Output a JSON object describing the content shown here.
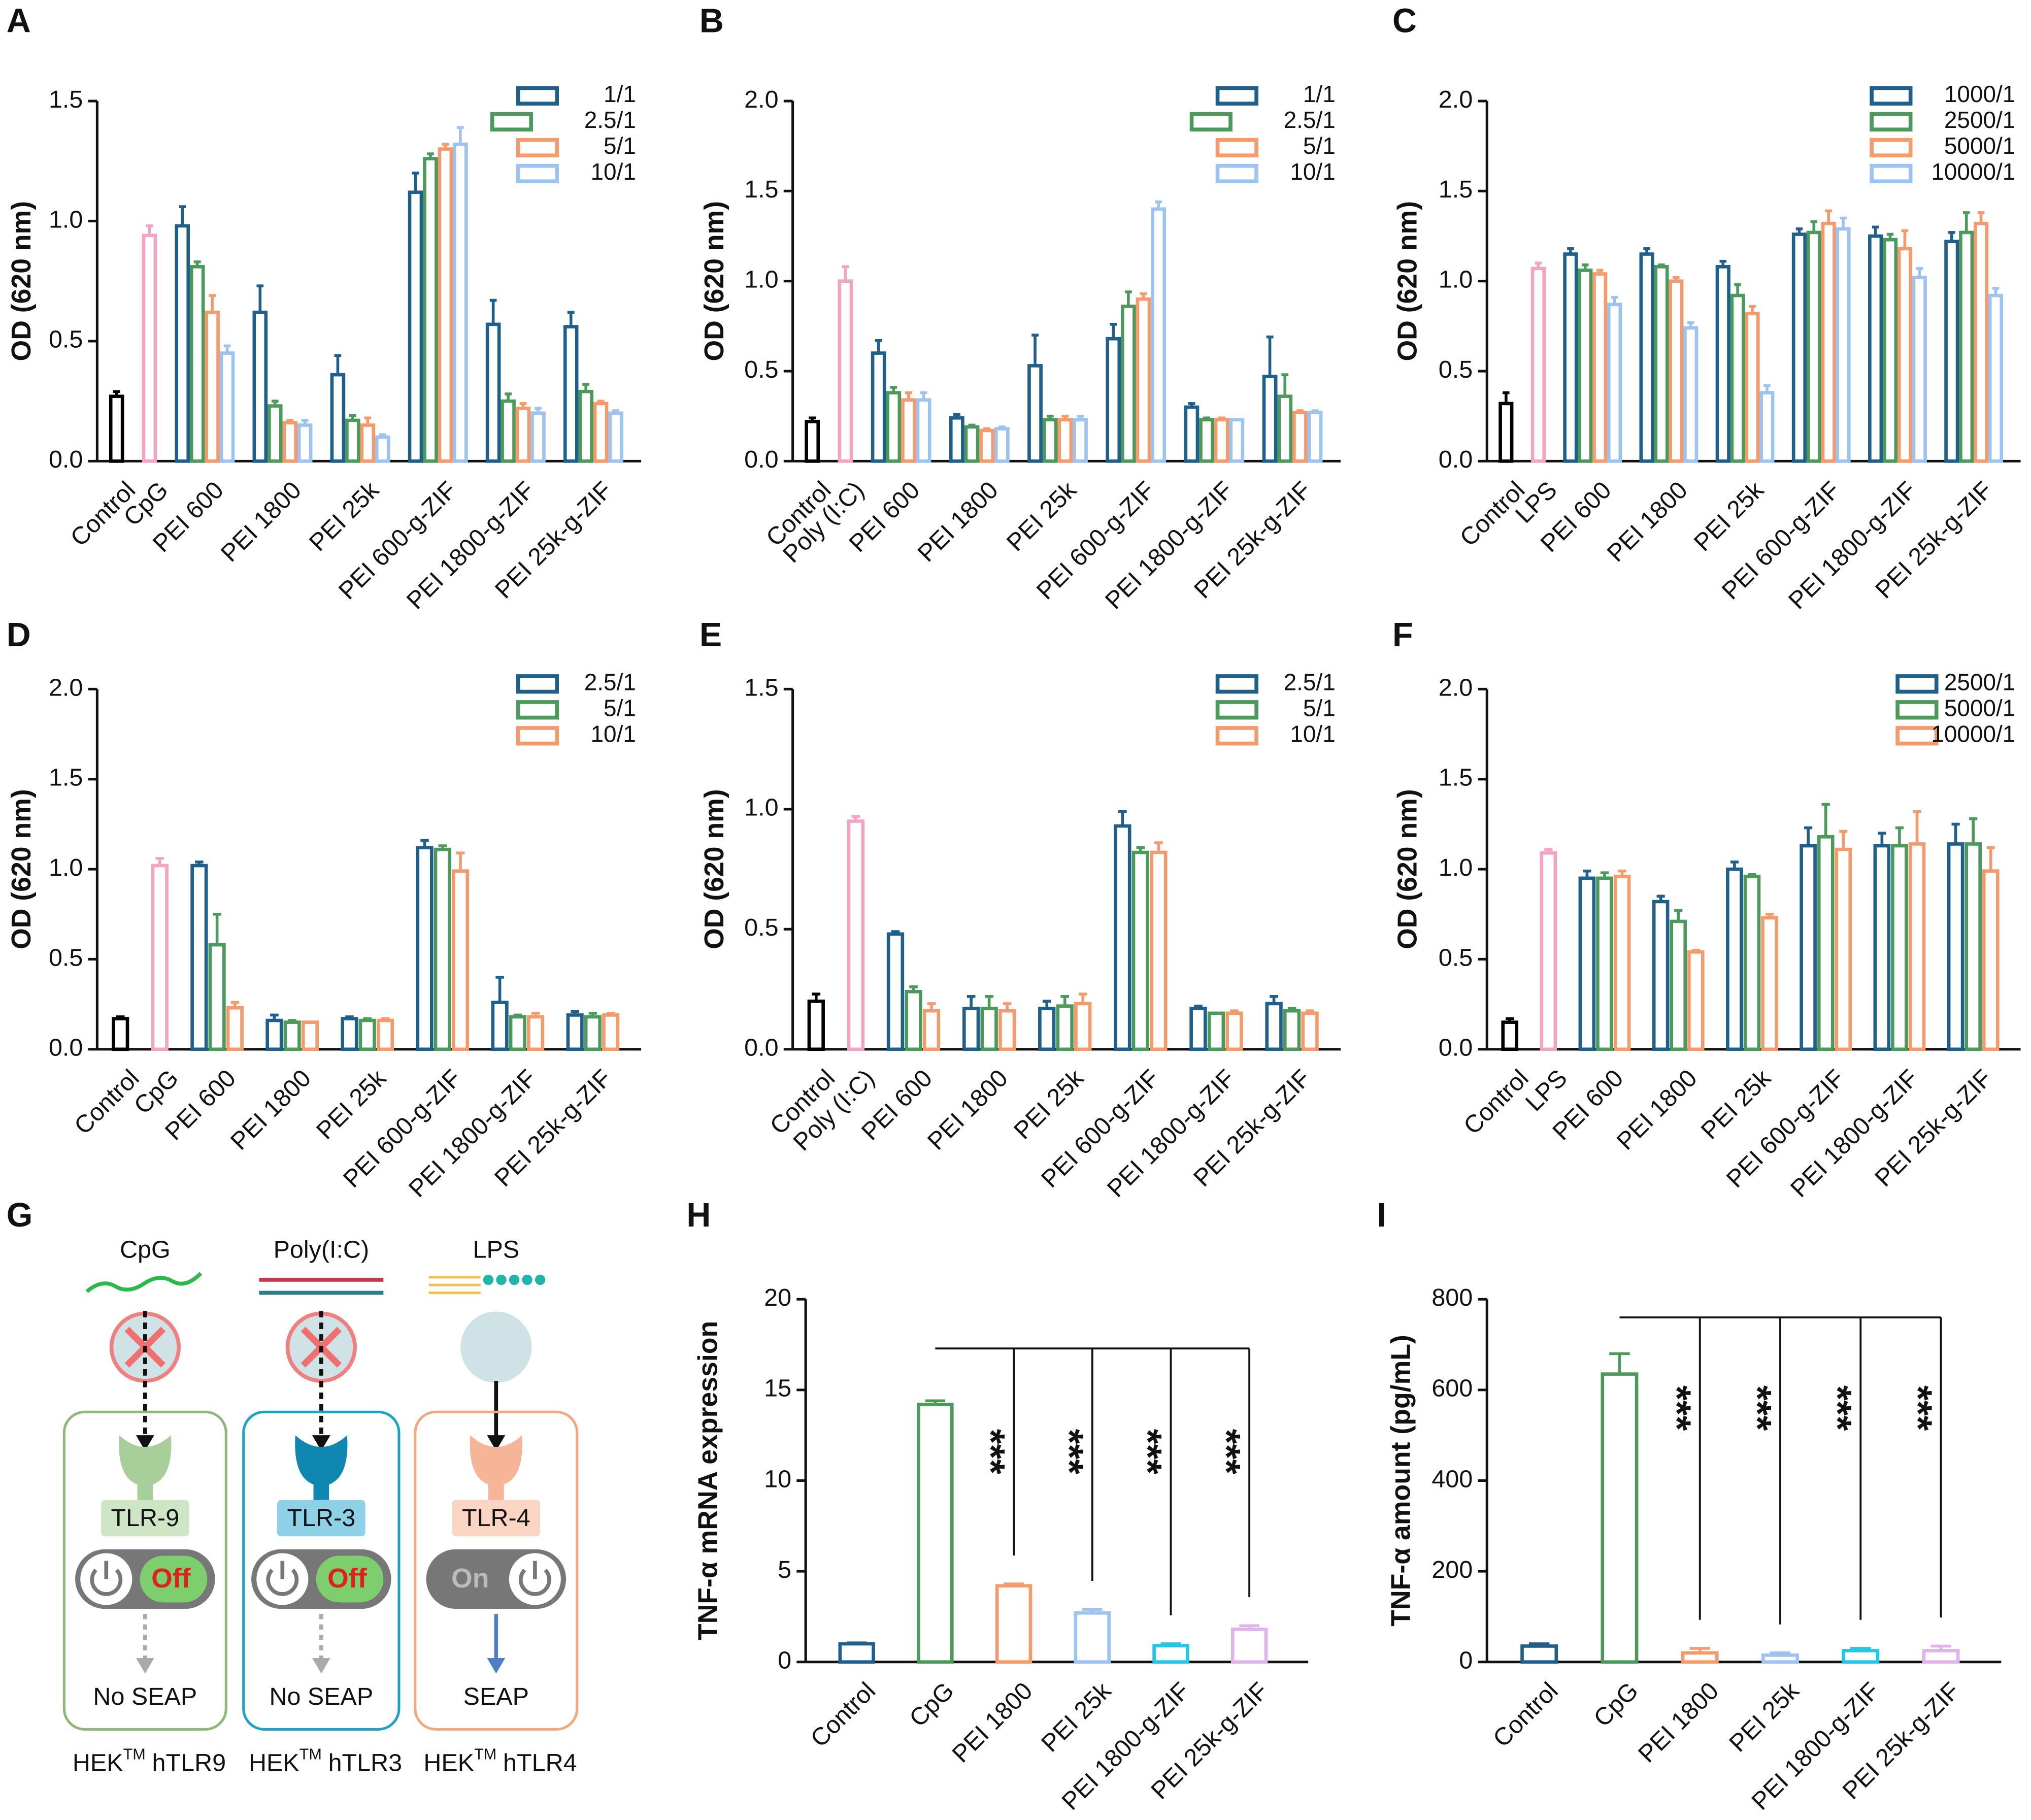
{
  "chart_data": [
    {
      "type": "bar",
      "panel": "A",
      "ylabel": "OD (620 nm)",
      "categories": [
        "Control",
        "CpG",
        "PEI 600",
        "PEI 1800",
        "PEI 25k",
        "PEI 600-g-ZIF",
        "PEI 1800-g-ZIF",
        "PEI 25k-g-ZIF"
      ],
      "values": [
        0.27,
        0.94,
        null,
        null,
        null,
        null,
        null,
        null
      ],
      "errors": [
        0.02,
        0.04,
        null,
        null,
        null,
        null,
        null,
        null
      ],
      "colors": [
        "#000000",
        "#f4a3c0",
        null,
        null,
        null,
        null,
        null,
        null
      ],
      "series": [
        {
          "name": "1/1",
          "color": "#1f5f8b",
          "values": [
            null,
            null,
            0.98,
            0.62,
            0.36,
            1.12,
            0.57,
            0.56
          ],
          "errors": [
            null,
            null,
            0.08,
            0.11,
            0.08,
            0.08,
            0.1,
            0.06
          ]
        },
        {
          "name": "2.5/1",
          "color": "#4c9a5b",
          "values": [
            null,
            null,
            0.81,
            0.23,
            0.17,
            1.26,
            0.25,
            0.29
          ],
          "errors": [
            null,
            null,
            0.02,
            0.02,
            0.02,
            0.02,
            0.03,
            0.03
          ]
        },
        {
          "name": "5/1",
          "color": "#f59a6b",
          "values": [
            null,
            null,
            0.62,
            0.16,
            0.15,
            1.3,
            0.22,
            0.24
          ],
          "errors": [
            null,
            null,
            0.07,
            0.01,
            0.03,
            0.02,
            0.02,
            0.01
          ]
        },
        {
          "name": "10/1",
          "color": "#9dc3f0",
          "values": [
            null,
            null,
            0.45,
            0.15,
            0.1,
            1.32,
            0.2,
            0.2
          ],
          "errors": [
            null,
            null,
            0.03,
            0.02,
            0.01,
            0.07,
            0.02,
            0.01
          ]
        }
      ],
      "ylim": [
        0,
        1.5
      ],
      "yticks": [
        {
          "value": 0,
          "label": "0.0"
        },
        0.5,
        {
          "value": 1,
          "label": "1.0"
        },
        1.5
      ]
    },
    {
      "type": "bar",
      "panel": "B",
      "ylabel": "OD (620 nm)",
      "categories": [
        "Control",
        "Poly (I:C)",
        "PEI 600",
        "PEI 1800",
        "PEI 25k",
        "PEI 600-g-ZIF",
        "PEI 1800-g-ZIF",
        "PEI 25k-g-ZIF"
      ],
      "values": [
        0.22,
        1.0,
        null,
        null,
        null,
        null,
        null,
        null
      ],
      "errors": [
        0.02,
        0.08,
        null,
        null,
        null,
        null,
        null,
        null
      ],
      "colors": [
        "#000000",
        "#f4a3c0",
        null,
        null,
        null,
        null,
        null,
        null
      ],
      "series": [
        {
          "name": "1/1",
          "color": "#1f5f8b",
          "values": [
            null,
            null,
            0.6,
            0.24,
            0.53,
            0.68,
            0.3,
            0.47
          ],
          "errors": [
            null,
            null,
            0.07,
            0.02,
            0.17,
            0.08,
            0.02,
            0.22
          ]
        },
        {
          "name": "2.5/1",
          "color": "#4c9a5b",
          "values": [
            null,
            null,
            0.38,
            0.19,
            0.23,
            0.86,
            0.23,
            0.36
          ],
          "errors": [
            null,
            null,
            0.03,
            0.01,
            0.02,
            0.08,
            0.01,
            0.12
          ]
        },
        {
          "name": "5/1",
          "color": "#f59a6b",
          "values": [
            null,
            null,
            0.34,
            0.17,
            0.23,
            0.9,
            0.23,
            0.27
          ],
          "errors": [
            null,
            null,
            0.04,
            0.01,
            0.02,
            0.03,
            0.01,
            0.01
          ]
        },
        {
          "name": "10/1",
          "color": "#9dc3f0",
          "values": [
            null,
            null,
            0.34,
            0.18,
            0.23,
            1.4,
            0.23,
            0.27
          ],
          "errors": [
            null,
            null,
            0.04,
            0.01,
            0.02,
            0.04,
            0,
            0.01
          ]
        }
      ],
      "ylim": [
        0,
        2
      ],
      "yticks": [
        {
          "value": 0,
          "label": "0.0"
        },
        0.5,
        {
          "value": 1,
          "label": "1.0"
        },
        1.5,
        {
          "value": 2,
          "label": "2.0"
        }
      ]
    },
    {
      "type": "bar",
      "panel": "C",
      "ylabel": "OD (620 nm)",
      "categories": [
        "Control",
        "LPS",
        "PEI 600",
        "PEI 1800",
        "PEI 25k",
        "PEI 600-g-ZIF",
        "PEI 1800-g-ZIF",
        "PEI 25k-g-ZIF"
      ],
      "values": [
        0.32,
        1.07,
        null,
        null,
        null,
        null,
        null,
        null
      ],
      "errors": [
        0.06,
        0.03,
        null,
        null,
        null,
        null,
        null,
        null
      ],
      "colors": [
        "#000000",
        "#f4a3c0",
        null,
        null,
        null,
        null,
        null,
        null
      ],
      "series": [
        {
          "name": "1000/1",
          "color": "#1f5f8b",
          "values": [
            null,
            null,
            1.15,
            1.15,
            1.08,
            1.26,
            1.25,
            1.22
          ],
          "errors": [
            null,
            null,
            0.03,
            0.03,
            0.03,
            0.03,
            0.05,
            0.05
          ]
        },
        {
          "name": "2500/1",
          "color": "#4c9a5b",
          "values": [
            null,
            null,
            1.06,
            1.08,
            0.92,
            1.27,
            1.23,
            1.27
          ],
          "errors": [
            null,
            null,
            0.03,
            0.01,
            0.06,
            0.06,
            0.03,
            0.11
          ]
        },
        {
          "name": "5000/1",
          "color": "#f59a6b",
          "values": [
            null,
            null,
            1.04,
            1.0,
            0.82,
            1.32,
            1.18,
            1.32
          ],
          "errors": [
            null,
            null,
            0.02,
            0.02,
            0.04,
            0.07,
            0.1,
            0.06
          ]
        },
        {
          "name": "10000/1",
          "color": "#9dc3f0",
          "values": [
            null,
            null,
            0.87,
            0.74,
            0.38,
            1.29,
            1.02,
            0.92
          ],
          "errors": [
            null,
            null,
            0.04,
            0.03,
            0.04,
            0.06,
            0.05,
            0.04
          ]
        }
      ],
      "ylim": [
        0,
        2
      ],
      "yticks": [
        {
          "value": 0,
          "label": "0.0"
        },
        0.5,
        {
          "value": 1,
          "label": "1.0"
        },
        1.5,
        {
          "value": 2,
          "label": "2.0"
        }
      ]
    },
    {
      "type": "bar",
      "panel": "D",
      "ylabel": "OD (620 nm)",
      "categories": [
        "Control",
        "CpG",
        "PEI 600",
        "PEI 1800",
        "PEI 25k",
        "PEI 600-g-ZIF",
        "PEI 1800-g-ZIF",
        "PEI 25k-g-ZIF"
      ],
      "values": [
        0.17,
        1.02,
        null,
        null,
        null,
        null,
        null,
        null
      ],
      "errors": [
        0.01,
        0.04,
        null,
        null,
        null,
        null,
        null,
        null
      ],
      "colors": [
        "#000000",
        "#f4a3c0",
        null,
        null,
        null,
        null,
        null,
        null
      ],
      "series": [
        {
          "name": "2.5/1",
          "color": "#1f5f8b",
          "values": [
            null,
            null,
            1.02,
            0.16,
            0.17,
            1.12,
            0.26,
            0.19
          ],
          "errors": [
            null,
            null,
            0.02,
            0.03,
            0.01,
            0.04,
            0.14,
            0.02
          ]
        },
        {
          "name": "5/1",
          "color": "#4c9a5b",
          "values": [
            null,
            null,
            0.58,
            0.15,
            0.16,
            1.11,
            0.18,
            0.18
          ],
          "errors": [
            null,
            null,
            0.17,
            0.01,
            0.01,
            0.02,
            0.01,
            0.02
          ]
        },
        {
          "name": "10/1",
          "color": "#f59a6b",
          "values": [
            null,
            null,
            0.23,
            0.15,
            0.16,
            0.99,
            0.18,
            0.19
          ],
          "errors": [
            null,
            null,
            0.03,
            0,
            0.01,
            0.1,
            0.02,
            0.01
          ]
        }
      ],
      "ylim": [
        0,
        2
      ],
      "yticks": [
        {
          "value": 0,
          "label": "0.0"
        },
        0.5,
        {
          "value": 1,
          "label": "1.0"
        },
        1.5,
        {
          "value": 2,
          "label": "2.0"
        }
      ]
    },
    {
      "type": "bar",
      "panel": "E",
      "ylabel": "OD (620 nm)",
      "categories": [
        "Control",
        "Poly (I:C)",
        "PEI 600",
        "PEI 1800",
        "PEI 25k",
        "PEI 600-g-ZIF",
        "PEI 1800-g-ZIF",
        "PEI 25k-g-ZIF"
      ],
      "values": [
        0.2,
        0.95,
        null,
        null,
        null,
        null,
        null,
        null
      ],
      "errors": [
        0.03,
        0.02,
        null,
        null,
        null,
        null,
        null,
        null
      ],
      "colors": [
        "#000000",
        "#f4a3c0",
        null,
        null,
        null,
        null,
        null,
        null
      ],
      "series": [
        {
          "name": "2.5/1",
          "color": "#1f5f8b",
          "values": [
            null,
            null,
            0.48,
            0.17,
            0.17,
            0.93,
            0.17,
            0.19
          ],
          "errors": [
            null,
            null,
            0.01,
            0.05,
            0.03,
            0.06,
            0.01,
            0.03
          ]
        },
        {
          "name": "5/1",
          "color": "#4c9a5b",
          "values": [
            null,
            null,
            0.24,
            0.17,
            0.18,
            0.82,
            0.15,
            0.16
          ],
          "errors": [
            null,
            null,
            0.02,
            0.05,
            0.04,
            0.02,
            0,
            0.01
          ]
        },
        {
          "name": "10/1",
          "color": "#f59a6b",
          "values": [
            null,
            null,
            0.16,
            0.16,
            0.19,
            0.82,
            0.15,
            0.15
          ],
          "errors": [
            null,
            null,
            0.03,
            0.03,
            0.04,
            0.04,
            0.01,
            0.01
          ]
        }
      ],
      "ylim": [
        0,
        1.5
      ],
      "yticks": [
        {
          "value": 0,
          "label": "0.0"
        },
        0.5,
        {
          "value": 1,
          "label": "1.0"
        },
        1.5
      ]
    },
    {
      "type": "bar",
      "panel": "F",
      "ylabel": "OD (620 nm)",
      "categories": [
        "Control",
        "LPS",
        "PEI 600",
        "PEI 1800",
        "PEI 25k",
        "PEI 600-g-ZIF",
        "PEI 1800-g-ZIF",
        "PEI 25k-g-ZIF"
      ],
      "values": [
        0.15,
        1.09,
        null,
        null,
        null,
        null,
        null,
        null
      ],
      "errors": [
        0.02,
        0.02,
        null,
        null,
        null,
        null,
        null,
        null
      ],
      "colors": [
        "#000000",
        "#f4a3c0",
        null,
        null,
        null,
        null,
        null,
        null
      ],
      "series": [
        {
          "name": "2500/1",
          "color": "#1f5f8b",
          "values": [
            null,
            null,
            0.95,
            0.82,
            1.0,
            1.13,
            1.13,
            1.14
          ],
          "errors": [
            null,
            null,
            0.04,
            0.03,
            0.04,
            0.1,
            0.07,
            0.11
          ]
        },
        {
          "name": "5000/1",
          "color": "#4c9a5b",
          "values": [
            null,
            null,
            0.95,
            0.71,
            0.96,
            1.18,
            1.13,
            1.14
          ],
          "errors": [
            null,
            null,
            0.03,
            0.06,
            0.01,
            0.18,
            0.1,
            0.14
          ]
        },
        {
          "name": "10000/1",
          "color": "#f59a6b",
          "values": [
            null,
            null,
            0.96,
            0.54,
            0.73,
            1.11,
            1.14,
            0.99
          ],
          "errors": [
            null,
            null,
            0.03,
            0.01,
            0.02,
            0.1,
            0.18,
            0.13
          ]
        }
      ],
      "ylim": [
        0,
        2
      ],
      "yticks": [
        {
          "value": 0,
          "label": "0.0"
        },
        0.5,
        {
          "value": 1,
          "label": "1.0"
        },
        1.5,
        {
          "value": 2,
          "label": "2.0"
        }
      ]
    },
    {
      "type": "bar",
      "panel": "H",
      "ylabel": "TNF-α mRNA expression",
      "categories": [
        "Control",
        "CpG",
        "PEI 1800",
        "PEI 25k",
        "PEI 1800-g-ZIF",
        "PEI 25k-g-ZIF"
      ],
      "values": [
        1.0,
        14.2,
        4.2,
        2.7,
        0.9,
        1.8
      ],
      "errors": [
        0.05,
        0.2,
        0.1,
        0.2,
        0.1,
        0.2
      ],
      "colors": [
        "#1f5f8b",
        "#4c9a5b",
        "#f59a6b",
        "#9dc3f0",
        "#22c7e8",
        "#e0b3ea"
      ],
      "annotations": [
        "***",
        "***",
        "***",
        "***"
      ],
      "ylim": [
        0,
        20
      ],
      "yticks": [
        0,
        5,
        10,
        15,
        20
      ]
    },
    {
      "type": "bar",
      "panel": "I",
      "ylabel": "TNF-α amount (pg/mL)",
      "categories": [
        "Control",
        "CpG",
        "PEI 1800",
        "PEI 25k",
        "PEI 1800-g-ZIF",
        "PEI 25k-g-ZIF"
      ],
      "values": [
        35,
        635,
        20,
        15,
        25,
        25
      ],
      "errors": [
        5,
        45,
        10,
        5,
        5,
        10
      ],
      "colors": [
        "#1f5f8b",
        "#4c9a5b",
        "#f59a6b",
        "#9dc3f0",
        "#22c7e8",
        "#e0b3ea"
      ],
      "annotations": [
        "***",
        "***",
        "***",
        "***"
      ],
      "ylim": [
        0,
        800
      ],
      "yticks": [
        0,
        200,
        400,
        600,
        800
      ]
    }
  ],
  "diagram": {
    "panel": "G",
    "columns": [
      {
        "ligand": "CpG",
        "receptor": "TLR-9",
        "switch": "Off",
        "output": "No SEAP",
        "cell": "HEK",
        "cell_sup": "TM",
        "cell_line": "hTLR9"
      },
      {
        "ligand": "Poly(I:C)",
        "receptor": "TLR-3",
        "switch": "Off",
        "output": "No SEAP",
        "cell": "HEK",
        "cell_sup": "TM",
        "cell_line": "hTLR3"
      },
      {
        "ligand": "LPS",
        "receptor": "TLR-4",
        "switch": "On",
        "output": "SEAP",
        "cell": "HEK",
        "cell_sup": "TM",
        "cell_line": "hTLR4"
      }
    ]
  }
}
